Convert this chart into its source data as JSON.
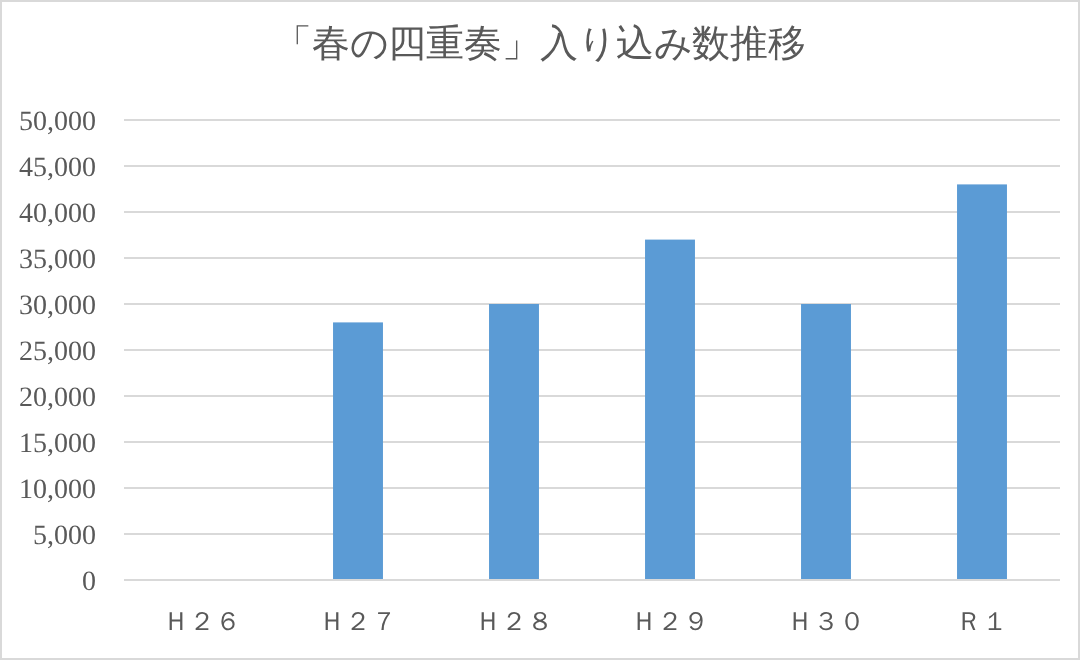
{
  "chart_data": {
    "type": "bar",
    "title": "「春の四重奏」入り込み数推移",
    "categories": [
      "Ｈ２６",
      "Ｈ２７",
      "Ｈ２８",
      "Ｈ２９",
      "Ｈ３０",
      "Ｒ１"
    ],
    "values": [
      null,
      28000,
      30000,
      37000,
      30000,
      43000
    ],
    "color": "#5b9bd5",
    "ylim": [
      0,
      50000
    ],
    "yticks": [
      0,
      {
        "value": 5000,
        "label": "5,000"
      },
      {
        "value": 10000,
        "label": "10,000"
      },
      {
        "value": 15000,
        "label": "15,000"
      },
      {
        "value": 20000,
        "label": "20,000"
      },
      {
        "value": 25000,
        "label": "25,000"
      },
      {
        "value": 30000,
        "label": "30,000"
      },
      {
        "value": 35000,
        "label": "35,000"
      },
      {
        "value": 40000,
        "label": "40,000"
      },
      {
        "value": 45000,
        "label": "45,000"
      },
      {
        "value": 50000,
        "label": "50,000"
      }
    ],
    "grid": "y"
  }
}
